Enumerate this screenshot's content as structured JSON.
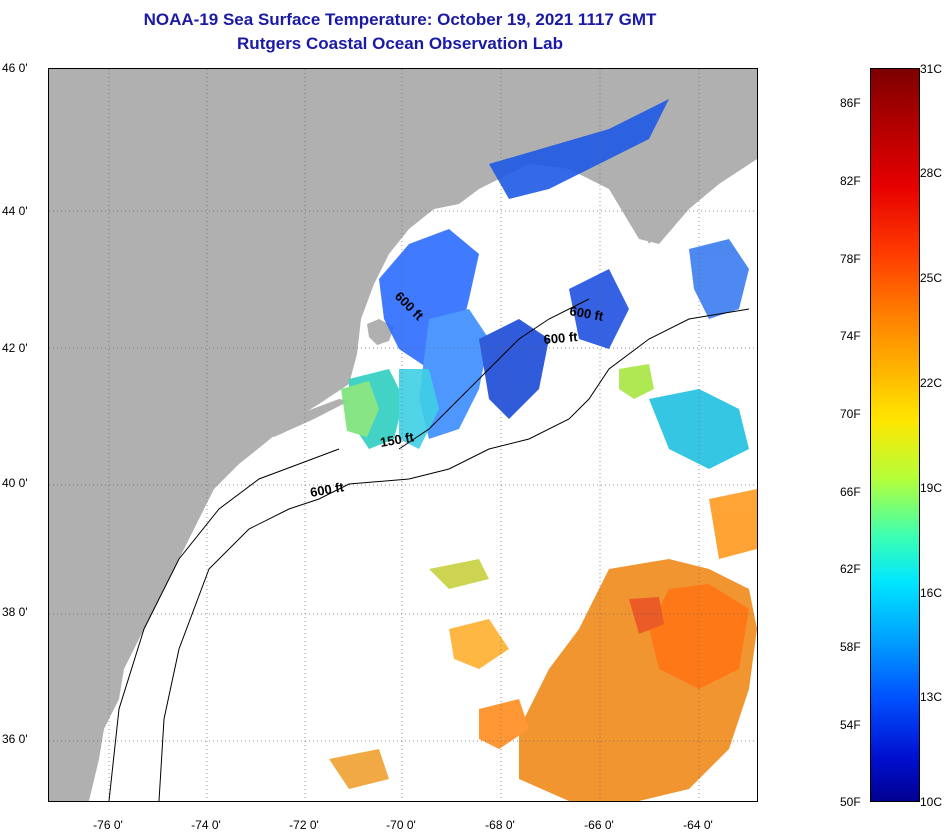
{
  "header": {
    "title": "NOAA-19 Sea Surface Temperature:  October 19, 2021 1117 GMT",
    "subtitle": "Rutgers Coastal Ocean Observation Lab"
  },
  "map": {
    "lat_labels": [
      "46 0'",
      "44 0'",
      "42 0'",
      "40 0'",
      "38 0'",
      "36 0'"
    ],
    "lon_labels": [
      "-76 0'",
      "-74 0'",
      "-72 0'",
      "-70 0'",
      "-68 0'",
      "-66 0'",
      "-64 0'"
    ],
    "lat_range": [
      35,
      46
    ],
    "lon_range": [
      -77,
      -62.5
    ],
    "contour_labels": [
      "600 ft",
      "600 ft",
      "600 ft",
      "150 ft",
      "600 ft"
    ],
    "colors": {
      "land": "#b0b0b0",
      "ocean_no_data": "#ffffff",
      "title": "#1a1aa6"
    }
  },
  "colorbar": {
    "fahrenheit": [
      "86F",
      "82F",
      "78F",
      "74F",
      "70F",
      "66F",
      "62F",
      "58F",
      "54F",
      "50F"
    ],
    "celsius": [
      "31C",
      "28C",
      "25C",
      "22C",
      "19C",
      "16C",
      "13C",
      "10C"
    ]
  }
}
